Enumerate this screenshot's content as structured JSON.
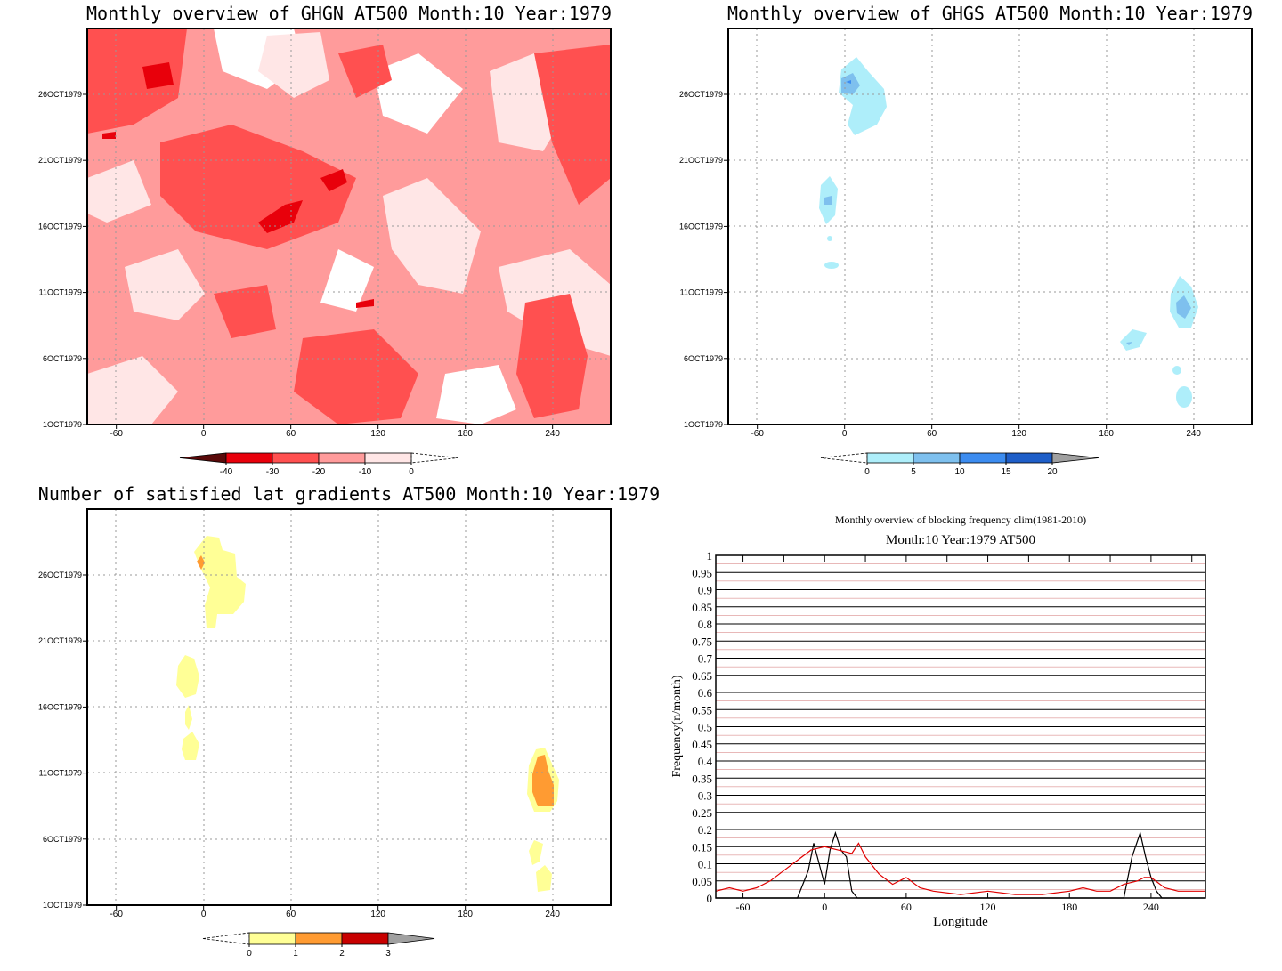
{
  "chart_data": [
    {
      "type": "heatmap",
      "title": "Monthly overview of GHGN AT500 Month:10 Year:1979",
      "x_ticks": [
        -60,
        0,
        60,
        120,
        180,
        240
      ],
      "x_tick_labels": [
        "-60",
        "0",
        "60",
        "120",
        "180",
        "240"
      ],
      "y_tick_labels": [
        "1OCT1979",
        "6OCT1979",
        "11OCT1979",
        "16OCT1979",
        "21OCT1979",
        "26OCT1979"
      ],
      "xlim": [
        -80,
        280
      ],
      "colorbar": {
        "tick_labels": [
          "-40",
          "-30",
          "-20",
          "-10",
          "0"
        ],
        "colors": [
          "#5a0a0a",
          "#e8000b",
          "#ff5050",
          "#ff9b9b",
          "#ffe6e6"
        ]
      },
      "grid": true
    },
    {
      "type": "heatmap",
      "title": "Monthly overview of GHGS AT500 Month:10 Year:1979",
      "x_ticks": [
        -60,
        0,
        60,
        120,
        180,
        240
      ],
      "x_tick_labels": [
        "-60",
        "0",
        "60",
        "120",
        "180",
        "240"
      ],
      "y_tick_labels": [
        "1OCT1979",
        "6OCT1979",
        "11OCT1979",
        "16OCT1979",
        "21OCT1979",
        "26OCT1979"
      ],
      "xlim": [
        -80,
        280
      ],
      "colorbar": {
        "tick_labels": [
          "0",
          "5",
          "10",
          "15",
          "20"
        ],
        "colors": [
          "#aeeefa",
          "#7ec0ee",
          "#3c8cf0",
          "#1e5ec8",
          "#a0a0a0"
        ]
      },
      "grid": true
    },
    {
      "type": "heatmap",
      "title": "Number of satisfied lat gradients AT500 Month:10 Year:1979",
      "x_ticks": [
        -60,
        0,
        60,
        120,
        180,
        240
      ],
      "x_tick_labels": [
        "-60",
        "0",
        "60",
        "120",
        "180",
        "240"
      ],
      "y_tick_labels": [
        "1OCT1979",
        "6OCT1979",
        "11OCT1979",
        "16OCT1979",
        "21OCT1979",
        "26OCT1979"
      ],
      "xlim": [
        -80,
        280
      ],
      "colorbar": {
        "tick_labels": [
          "0",
          "1",
          "2",
          "3"
        ],
        "colors": [
          "#ffff96",
          "#ff9b32",
          "#c80000",
          "#a0a0a0"
        ]
      },
      "grid": true
    },
    {
      "type": "line",
      "title": "Monthly overview of blocking frequency clim(1981-2010)",
      "subtitle": "Month:10 Year:1979  AT500",
      "xlabel": "Longitude",
      "ylabel": "Frequency(n/month)",
      "xlim": [
        -80,
        280
      ],
      "ylim": [
        0,
        1
      ],
      "x_ticks": [
        -60,
        0,
        60,
        120,
        180,
        240
      ],
      "y_ticks": [
        0,
        0.05,
        0.1,
        0.15,
        0.2,
        0.25,
        0.3,
        0.35,
        0.4,
        0.45,
        0.5,
        0.55,
        0.6,
        0.65,
        0.7,
        0.75,
        0.8,
        0.85,
        0.9,
        0.95,
        1
      ],
      "y_tick_labels": [
        "0",
        "0.05",
        "0.1",
        "0.15",
        "0.2",
        "0.25",
        "0.3",
        "0.35",
        "0.4",
        "0.45",
        "0.5",
        "0.55",
        "0.6",
        "0.65",
        "0.7",
        "0.75",
        "0.8",
        "0.85",
        "0.9",
        "0.95",
        "1"
      ],
      "series": [
        {
          "color": "#000000",
          "x": [
            -80,
            -20,
            -12,
            -8,
            -4,
            0,
            4,
            8,
            12,
            16,
            20,
            24,
            30,
            220,
            226,
            232,
            236,
            240,
            244,
            248,
            280
          ],
          "y": [
            0,
            0,
            0.08,
            0.16,
            0.1,
            0.04,
            0.14,
            0.19,
            0.14,
            0.12,
            0.02,
            0,
            0,
            0,
            0.12,
            0.19,
            0.12,
            0.06,
            0.02,
            0,
            0
          ]
        },
        {
          "color": "#e00000",
          "x": [
            -80,
            -70,
            -60,
            -50,
            -40,
            -30,
            -20,
            -10,
            0,
            10,
            20,
            25,
            30,
            40,
            50,
            60,
            70,
            80,
            100,
            120,
            140,
            160,
            180,
            190,
            200,
            210,
            220,
            230,
            235,
            240,
            250,
            260,
            280
          ],
          "y": [
            0.02,
            0.03,
            0.02,
            0.03,
            0.05,
            0.08,
            0.11,
            0.14,
            0.15,
            0.14,
            0.13,
            0.16,
            0.12,
            0.07,
            0.04,
            0.06,
            0.03,
            0.02,
            0.01,
            0.02,
            0.01,
            0.01,
            0.02,
            0.03,
            0.02,
            0.02,
            0.04,
            0.05,
            0.06,
            0.06,
            0.03,
            0.02,
            0.02
          ]
        }
      ],
      "grid": true
    }
  ]
}
